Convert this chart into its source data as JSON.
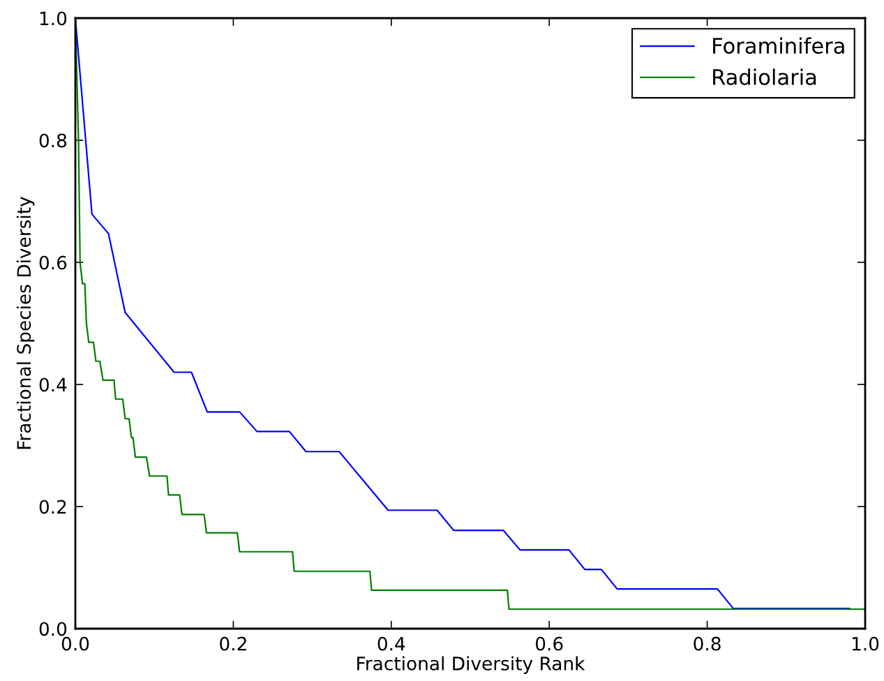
{
  "chart_data": {
    "type": "line",
    "xlabel": "Fractional Diversity Rank",
    "ylabel": "Fractional Species Diversity",
    "xlim": [
      0.0,
      1.0
    ],
    "ylim": [
      0.0,
      1.0
    ],
    "xticks": [
      {
        "value": 0,
        "label": "0.0"
      },
      0.2,
      0.4,
      0.6,
      0.8,
      {
        "value": 1,
        "label": "1.0"
      }
    ],
    "yticks": [
      {
        "value": 0,
        "label": "0.0"
      },
      0.2,
      0.4,
      0.6,
      0.8,
      {
        "value": 1,
        "label": "1.0"
      }
    ],
    "grid": false,
    "legend": "top right",
    "marker": "none",
    "line_style": "solid",
    "series": [
      {
        "name": "Foraminifera",
        "color": "#0000ff",
        "x": [
          0.0,
          0.021,
          0.042,
          0.063,
          0.125,
          0.147,
          0.167,
          0.208,
          0.23,
          0.271,
          0.292,
          0.334,
          0.396,
          0.458,
          0.479,
          0.542,
          0.563,
          0.625,
          0.645,
          0.666,
          0.686,
          0.813,
          0.833,
          0.98
        ],
        "values": [
          1.0,
          0.679,
          0.647,
          0.518,
          0.42,
          0.42,
          0.355,
          0.355,
          0.323,
          0.323,
          0.29,
          0.29,
          0.194,
          0.194,
          0.161,
          0.161,
          0.129,
          0.129,
          0.097,
          0.097,
          0.065,
          0.065,
          0.033,
          0.033
        ]
      },
      {
        "name": "Radiolaria",
        "color": "#008000",
        "x": [
          0.0,
          0.002,
          0.004,
          0.005,
          0.006,
          0.009,
          0.012,
          0.014,
          0.017,
          0.023,
          0.026,
          0.031,
          0.035,
          0.049,
          0.051,
          0.06,
          0.063,
          0.068,
          0.071,
          0.073,
          0.076,
          0.09,
          0.094,
          0.116,
          0.118,
          0.132,
          0.135,
          0.163,
          0.166,
          0.205,
          0.208,
          0.275,
          0.277,
          0.373,
          0.375,
          0.547,
          0.549,
          1.0
        ],
        "values": [
          1.0,
          0.9,
          0.8,
          0.7,
          0.6,
          0.565,
          0.565,
          0.5,
          0.469,
          0.469,
          0.438,
          0.438,
          0.407,
          0.407,
          0.376,
          0.376,
          0.344,
          0.344,
          0.313,
          0.313,
          0.281,
          0.281,
          0.25,
          0.25,
          0.219,
          0.219,
          0.187,
          0.187,
          0.157,
          0.157,
          0.126,
          0.126,
          0.094,
          0.094,
          0.063,
          0.063,
          0.032,
          0.032
        ]
      }
    ]
  }
}
